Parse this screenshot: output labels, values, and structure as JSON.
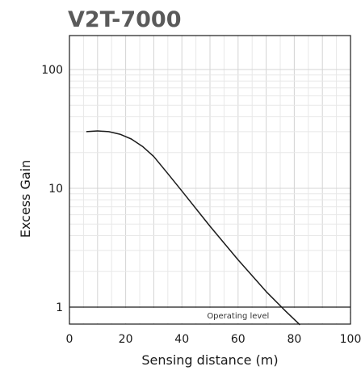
{
  "chart_data": {
    "type": "line",
    "title": "V2T-7000",
    "xlabel": "Sensing distance (m)",
    "ylabel": "Excess Gain",
    "xlim": [
      0,
      100
    ],
    "ylim": [
      0.7,
      200
    ],
    "yscale": "log",
    "grid": true,
    "x_ticks": [
      "0",
      "20",
      "40",
      "60",
      "80",
      "100"
    ],
    "y_ticks": [
      "1",
      "10",
      "100"
    ],
    "series": [
      {
        "values": [
          {
            "x": 6,
            "y": 30
          },
          {
            "x": 10,
            "y": 30.4
          },
          {
            "x": 14,
            "y": 30
          },
          {
            "x": 18,
            "y": 28.5
          },
          {
            "x": 22,
            "y": 26
          },
          {
            "x": 26,
            "y": 22.5
          },
          {
            "x": 30,
            "y": 18.5
          },
          {
            "x": 35,
            "y": 13.3
          },
          {
            "x": 40,
            "y": 9.5
          },
          {
            "x": 50,
            "y": 4.8
          },
          {
            "x": 60,
            "y": 2.5
          },
          {
            "x": 70,
            "y": 1.35
          },
          {
            "x": 77,
            "y": 0.92
          },
          {
            "x": 82,
            "y": 0.71
          }
        ]
      }
    ],
    "reference_line": {
      "y": 1,
      "label": "Operating level"
    },
    "colors": {
      "line": "#1a1a1a",
      "grid": "#d4d4d4",
      "minor_grid": "#e8e8e8",
      "title": "#5a5a5a"
    }
  }
}
